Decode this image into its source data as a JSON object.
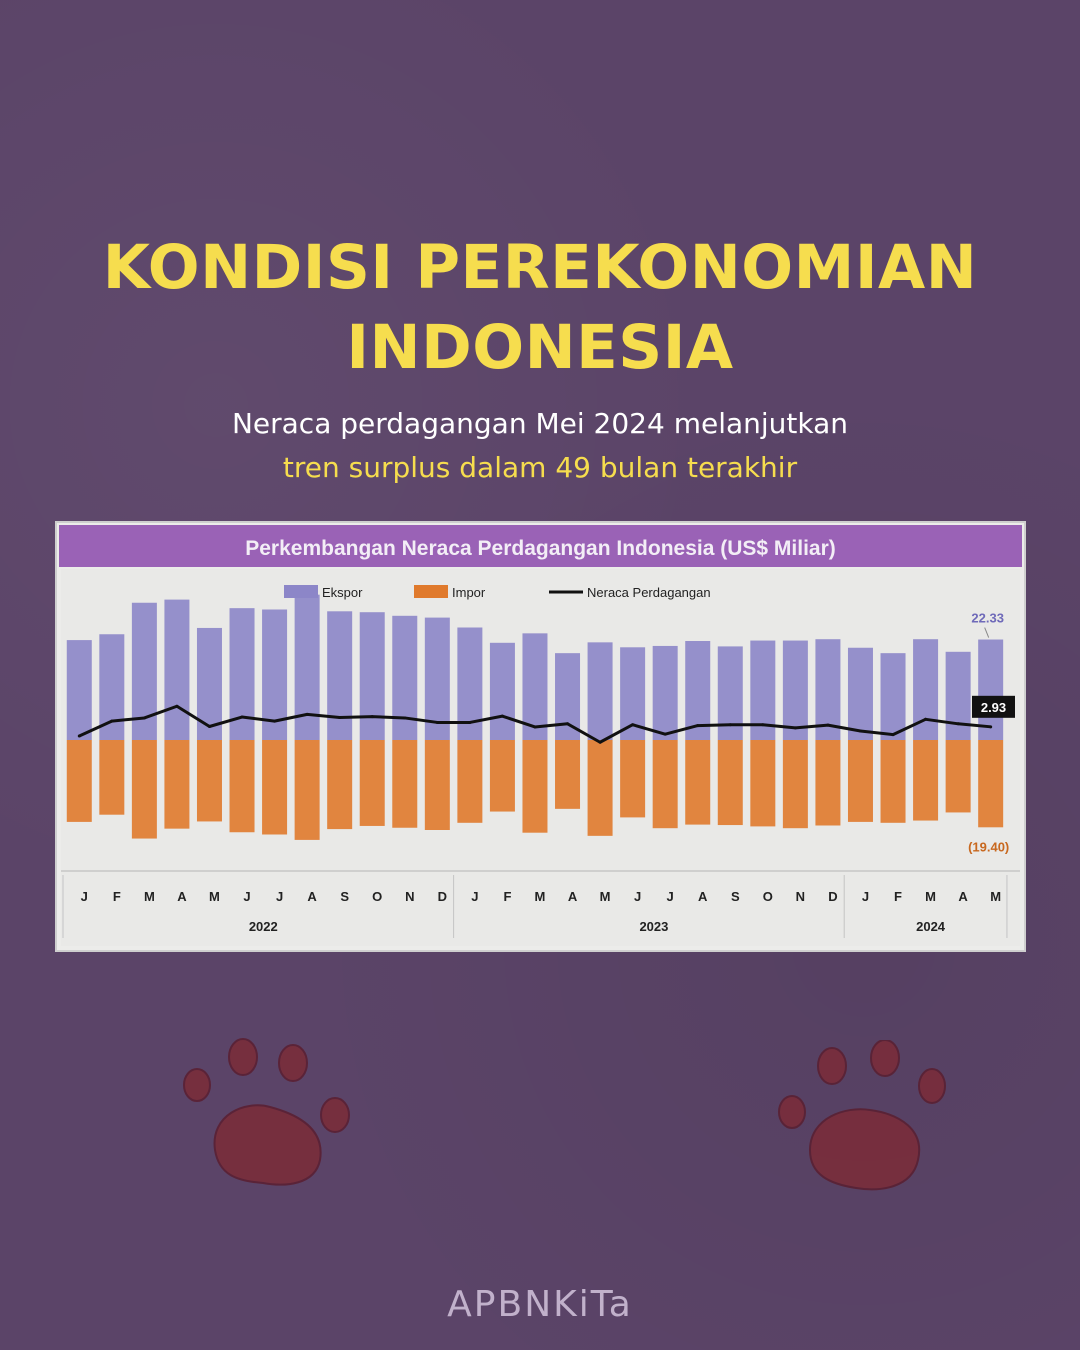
{
  "header": {
    "title_line1": "KONDISI PEREKONOMIAN",
    "title_line2": "INDONESIA",
    "subtitle_line1": "Neraca perdagangan Mei 2024 melanjutkan",
    "subtitle_line2": "tren surplus dalam 49 bulan terakhir"
  },
  "footer": {
    "brand": "APBNKiTa"
  },
  "colors": {
    "background": "#5b4468",
    "title": "#f6dd4e",
    "chart_header": "#9a62b6",
    "ekspor": "#8c86c8",
    "impor": "#e07a2c",
    "neraca": "#111111",
    "ekspor_label": "#6f6ab9",
    "impor_label": "#c8681f"
  },
  "chart_data": {
    "type": "bar",
    "title": "Perkembangan Neraca Perdagangan Indonesia (US$ Miliar)",
    "legend": [
      "Ekspor",
      "Impor",
      "Neraca Perdagangan"
    ],
    "legend_position": "top",
    "months": [
      "J",
      "F",
      "M",
      "A",
      "M",
      "J",
      "J",
      "A",
      "S",
      "O",
      "N",
      "D",
      "J",
      "F",
      "M",
      "A",
      "M",
      "J",
      "J",
      "A",
      "S",
      "O",
      "N",
      "D",
      "J",
      "F",
      "M",
      "A",
      "M"
    ],
    "years": [
      {
        "label": "2022",
        "start": 0,
        "count": 12
      },
      {
        "label": "2023",
        "start": 12,
        "count": 12
      },
      {
        "label": "2024",
        "start": 24,
        "count": 5
      }
    ],
    "ylim": [
      -24,
      31
    ],
    "series": [
      {
        "name": "Ekspor",
        "kind": "bar",
        "values": [
          22.2,
          23.5,
          30.5,
          31.2,
          24.9,
          29.3,
          29.0,
          32.3,
          28.6,
          28.4,
          27.6,
          27.2,
          25.0,
          21.6,
          23.7,
          19.3,
          21.7,
          20.6,
          20.9,
          22.0,
          20.8,
          22.1,
          22.1,
          22.4,
          20.5,
          19.3,
          22.4,
          19.6,
          22.33
        ]
      },
      {
        "name": "Impor",
        "kind": "bar",
        "values": [
          -18.2,
          -16.6,
          -21.9,
          -19.7,
          -18.1,
          -20.5,
          -21.0,
          -22.2,
          -19.8,
          -19.1,
          -19.5,
          -20.0,
          -18.4,
          -15.9,
          -20.6,
          -15.3,
          -21.3,
          -17.2,
          -19.6,
          -18.8,
          -18.9,
          -19.2,
          -19.6,
          -19.0,
          -18.2,
          -18.4,
          -17.9,
          -16.1,
          -19.4
        ]
      },
      {
        "name": "Neraca Perdagangan",
        "kind": "line",
        "values": [
          0.9,
          4.2,
          4.9,
          7.5,
          3.0,
          5.1,
          4.2,
          5.7,
          5.0,
          5.2,
          4.9,
          3.9,
          3.9,
          5.3,
          2.9,
          3.6,
          -0.5,
          3.4,
          1.3,
          3.2,
          3.4,
          3.4,
          2.7,
          3.3,
          2.0,
          1.2,
          4.6,
          3.6,
          2.93
        ]
      }
    ],
    "annotations": {
      "ekspor_last": "22.33",
      "impor_last": "(19.40)",
      "neraca_last": "2.93"
    }
  }
}
